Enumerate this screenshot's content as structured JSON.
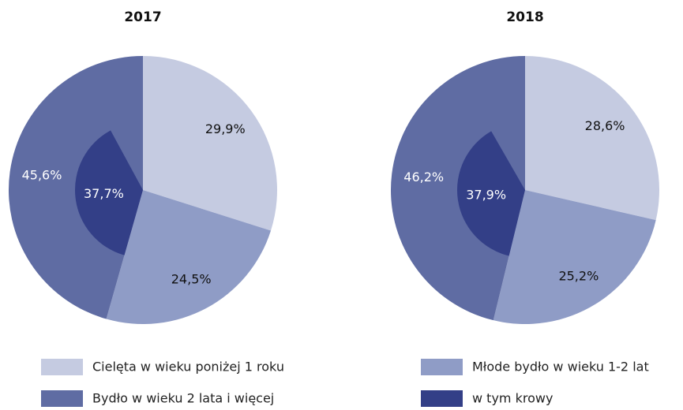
{
  "chart_data": [
    {
      "type": "pie",
      "title": "2017",
      "values": [
        29.9,
        24.5,
        45.6
      ],
      "value_labels": [
        "29,9%",
        "24,5%",
        "45,6%"
      ],
      "subset_value": 37.7,
      "subset_label": "37,7%"
    },
    {
      "type": "pie",
      "title": "2018",
      "values": [
        28.6,
        25.2,
        46.2
      ],
      "value_labels": [
        "28,6%",
        "25,2%",
        "46,2%"
      ],
      "subset_value": 37.9,
      "subset_label": "37,9%"
    }
  ],
  "legend": {
    "names": [
      "Cielęta w wieku poniżej 1 roku",
      "Młode bydło w wieku 1-2 lat",
      "Bydło w wieku 2 lata i więcej",
      "w tym krowy"
    ],
    "colors": [
      "#c5cbe1",
      "#8f9cc6",
      "#5f6ca3",
      "#333f87"
    ]
  }
}
